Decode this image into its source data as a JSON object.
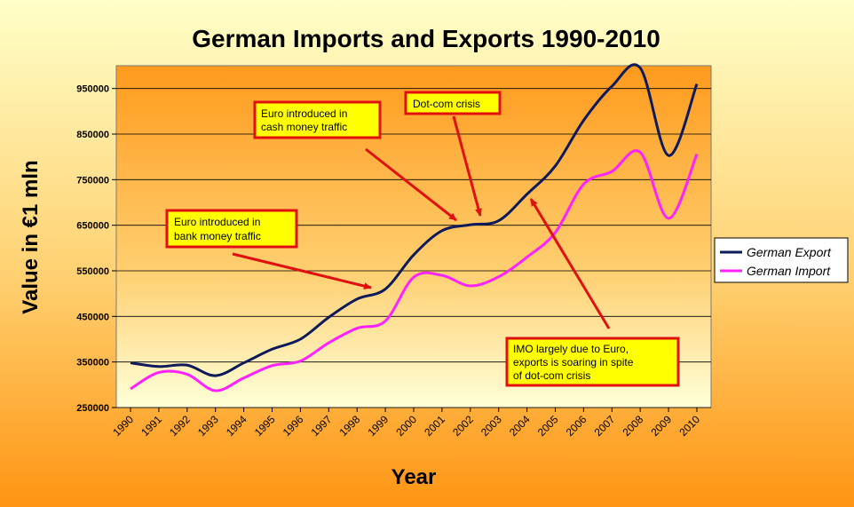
{
  "chart_data": {
    "type": "line",
    "title": "German Imports and Exports 1990-2010",
    "xlabel": "Year",
    "ylabel": "Value in €1 mln",
    "categories": [
      "1990",
      "1991",
      "1992",
      "1993",
      "1994",
      "1995",
      "1996",
      "1997",
      "1998",
      "1999",
      "2000",
      "2001",
      "2002",
      "2003",
      "2004",
      "2005",
      "2006",
      "2007",
      "2008",
      "2009",
      "2010"
    ],
    "y_ticks": [
      "250000",
      "350000",
      "450000",
      "550000",
      "650000",
      "750000",
      "850000",
      "950000"
    ],
    "ylim": [
      250000,
      1000000
    ],
    "grid": true,
    "legend_position": "right",
    "series": [
      {
        "name": "German Export",
        "color": "#0d1a5c",
        "values": [
          348000,
          340000,
          343000,
          320000,
          348000,
          378000,
          400000,
          448000,
          488000,
          510000,
          585000,
          638000,
          651000,
          660000,
          718000,
          780000,
          880000,
          955000,
          995000,
          803000,
          960000
        ]
      },
      {
        "name": "German Import",
        "color": "#ff22ff",
        "values": [
          291000,
          327000,
          323000,
          287000,
          315000,
          342000,
          352000,
          392000,
          424000,
          440000,
          536000,
          540000,
          517000,
          537000,
          580000,
          634000,
          740000,
          768000,
          810000,
          665000,
          806000
        ]
      }
    ],
    "annotations": [
      {
        "id": "euro-bank",
        "lines": [
          "Euro introduced in",
          "bank money traffic"
        ]
      },
      {
        "id": "euro-cash",
        "lines": [
          "Euro introduced in",
          "cash money traffic"
        ]
      },
      {
        "id": "dotcom",
        "lines": [
          "Dot-com crisis"
        ]
      },
      {
        "id": "imo",
        "lines": [
          "IMO largely due to Euro,",
          "exports is soaring in spite",
          "of dot-com crisis"
        ]
      }
    ]
  }
}
